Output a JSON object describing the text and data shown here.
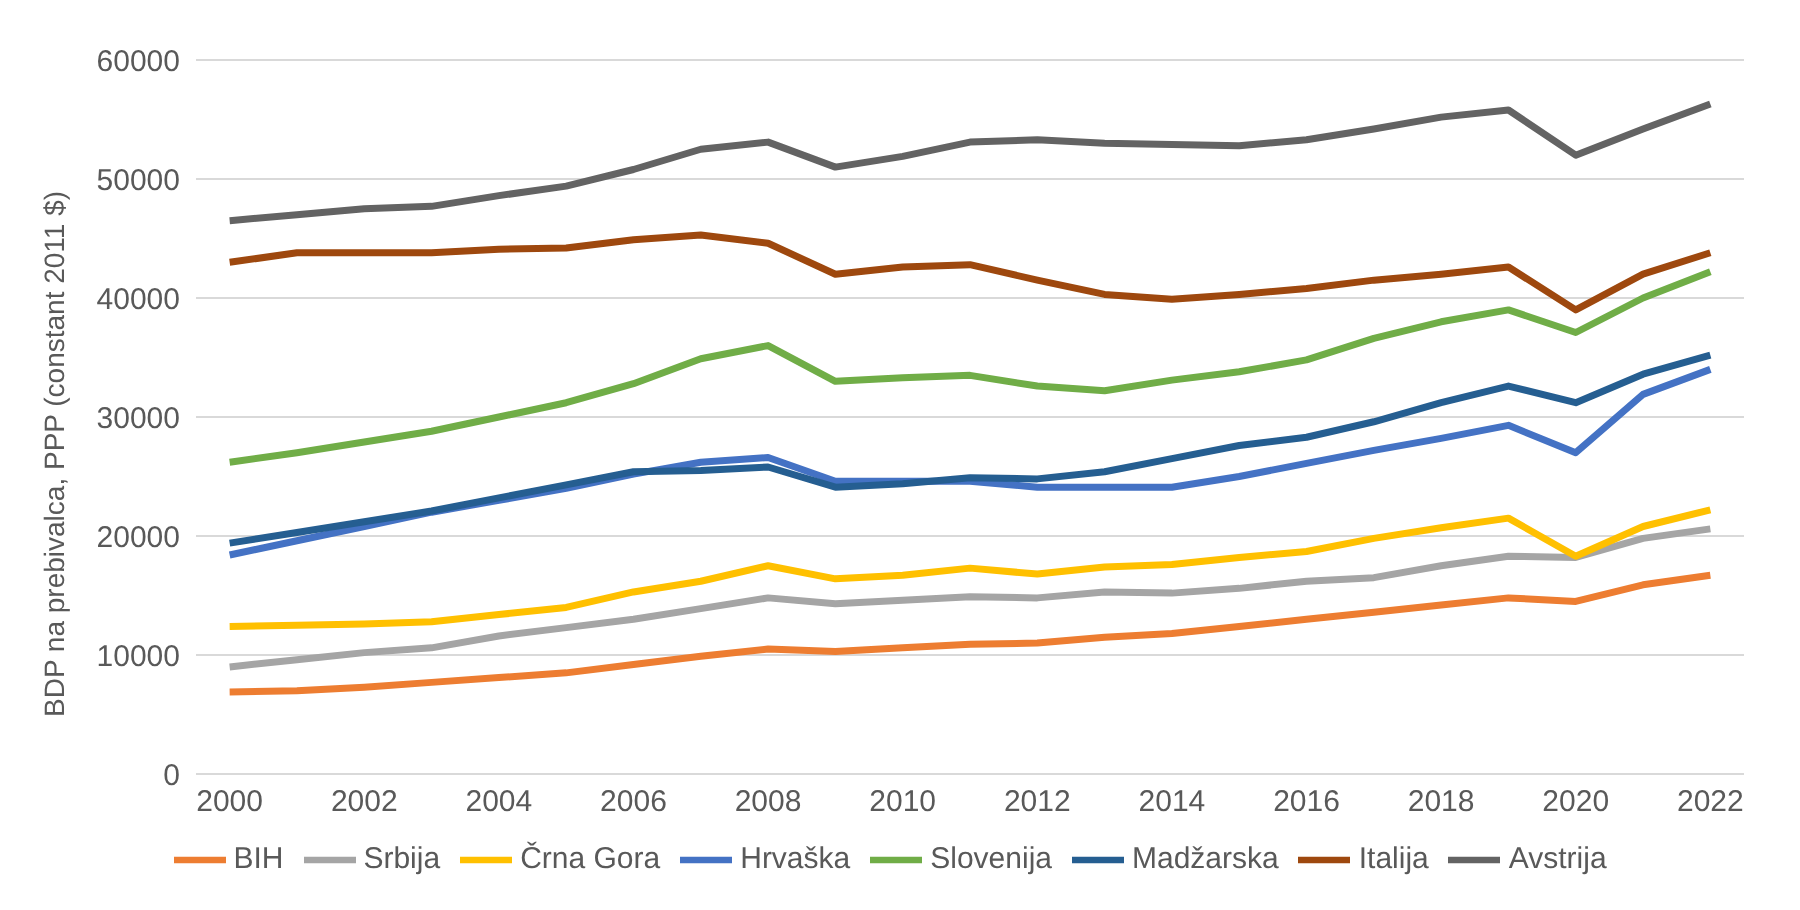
{
  "chart_data": {
    "type": "line",
    "ylabel": "BDP na prebivalca, PPP (constant 2011 $)",
    "x": [
      2000,
      2001,
      2002,
      2003,
      2004,
      2005,
      2006,
      2007,
      2008,
      2009,
      2010,
      2011,
      2012,
      2013,
      2014,
      2015,
      2016,
      2017,
      2018,
      2019,
      2020,
      2021,
      2022
    ],
    "xlim": [
      1999.5,
      2022.5
    ],
    "xticks": [
      2000,
      2002,
      2004,
      2006,
      2008,
      2010,
      2012,
      2014,
      2016,
      2018,
      2020,
      2022
    ],
    "ylim": [
      0,
      60000
    ],
    "yticks": [
      0,
      10000,
      20000,
      30000,
      40000,
      50000,
      60000
    ],
    "grid": "y",
    "legend": "bottom",
    "marker": "none",
    "line_style": "solid",
    "series": [
      {
        "name": "BIH",
        "color": "#ed7d31",
        "values": [
          6900,
          7000,
          7300,
          7700,
          8100,
          8500,
          9200,
          9900,
          10500,
          10300,
          10600,
          10900,
          11000,
          11500,
          11800,
          12400,
          13000,
          13600,
          14200,
          14800,
          14500,
          15900,
          16700
        ]
      },
      {
        "name": "Srbija",
        "color": "#a5a5a5",
        "values": [
          9000,
          9600,
          10200,
          10600,
          11600,
          12300,
          13000,
          13900,
          14800,
          14300,
          14600,
          14900,
          14800,
          15300,
          15200,
          15600,
          16200,
          16500,
          17500,
          18300,
          18200,
          19800,
          20600
        ]
      },
      {
        "name": "Črna Gora",
        "color": "#ffc000",
        "values": [
          12400,
          12500,
          12600,
          12800,
          13400,
          14000,
          15300,
          16200,
          17500,
          16400,
          16700,
          17300,
          16800,
          17400,
          17600,
          18200,
          18700,
          19800,
          20700,
          21500,
          18300,
          20800,
          22200
        ]
      },
      {
        "name": "Hrvaška",
        "color": "#4472c4",
        "values": [
          18400,
          19600,
          20800,
          22000,
          23000,
          24000,
          25200,
          26200,
          26600,
          24600,
          24600,
          24600,
          24100,
          24100,
          24100,
          25000,
          26100,
          27200,
          28200,
          29300,
          27000,
          31900,
          34000
        ]
      },
      {
        "name": "Slovenija",
        "color": "#70ad47",
        "values": [
          26200,
          27000,
          27900,
          28800,
          30000,
          31200,
          32800,
          34900,
          36000,
          33000,
          33300,
          33500,
          32600,
          32200,
          33100,
          33800,
          34800,
          36600,
          38000,
          39000,
          37100,
          40000,
          42200
        ]
      },
      {
        "name": "Madžarska",
        "color": "#255e91",
        "values": [
          19400,
          20300,
          21200,
          22100,
          23200,
          24300,
          25400,
          25500,
          25800,
          24100,
          24400,
          24900,
          24800,
          25400,
          26500,
          27600,
          28300,
          29600,
          31200,
          32600,
          31200,
          33600,
          35200
        ]
      },
      {
        "name": "Italija",
        "color": "#9e480e",
        "values": [
          43000,
          43800,
          43800,
          43800,
          44100,
          44200,
          44900,
          45300,
          44600,
          42000,
          42600,
          42800,
          41500,
          40300,
          39900,
          40300,
          40800,
          41500,
          42000,
          42600,
          39000,
          42000,
          43800
        ]
      },
      {
        "name": "Avstrija",
        "color": "#636363",
        "values": [
          46500,
          47000,
          47500,
          47700,
          48600,
          49400,
          50800,
          52500,
          53100,
          51000,
          51900,
          53100,
          53300,
          53000,
          52900,
          52800,
          53300,
          54200,
          55200,
          55800,
          52000,
          54200,
          56300
        ]
      }
    ]
  }
}
